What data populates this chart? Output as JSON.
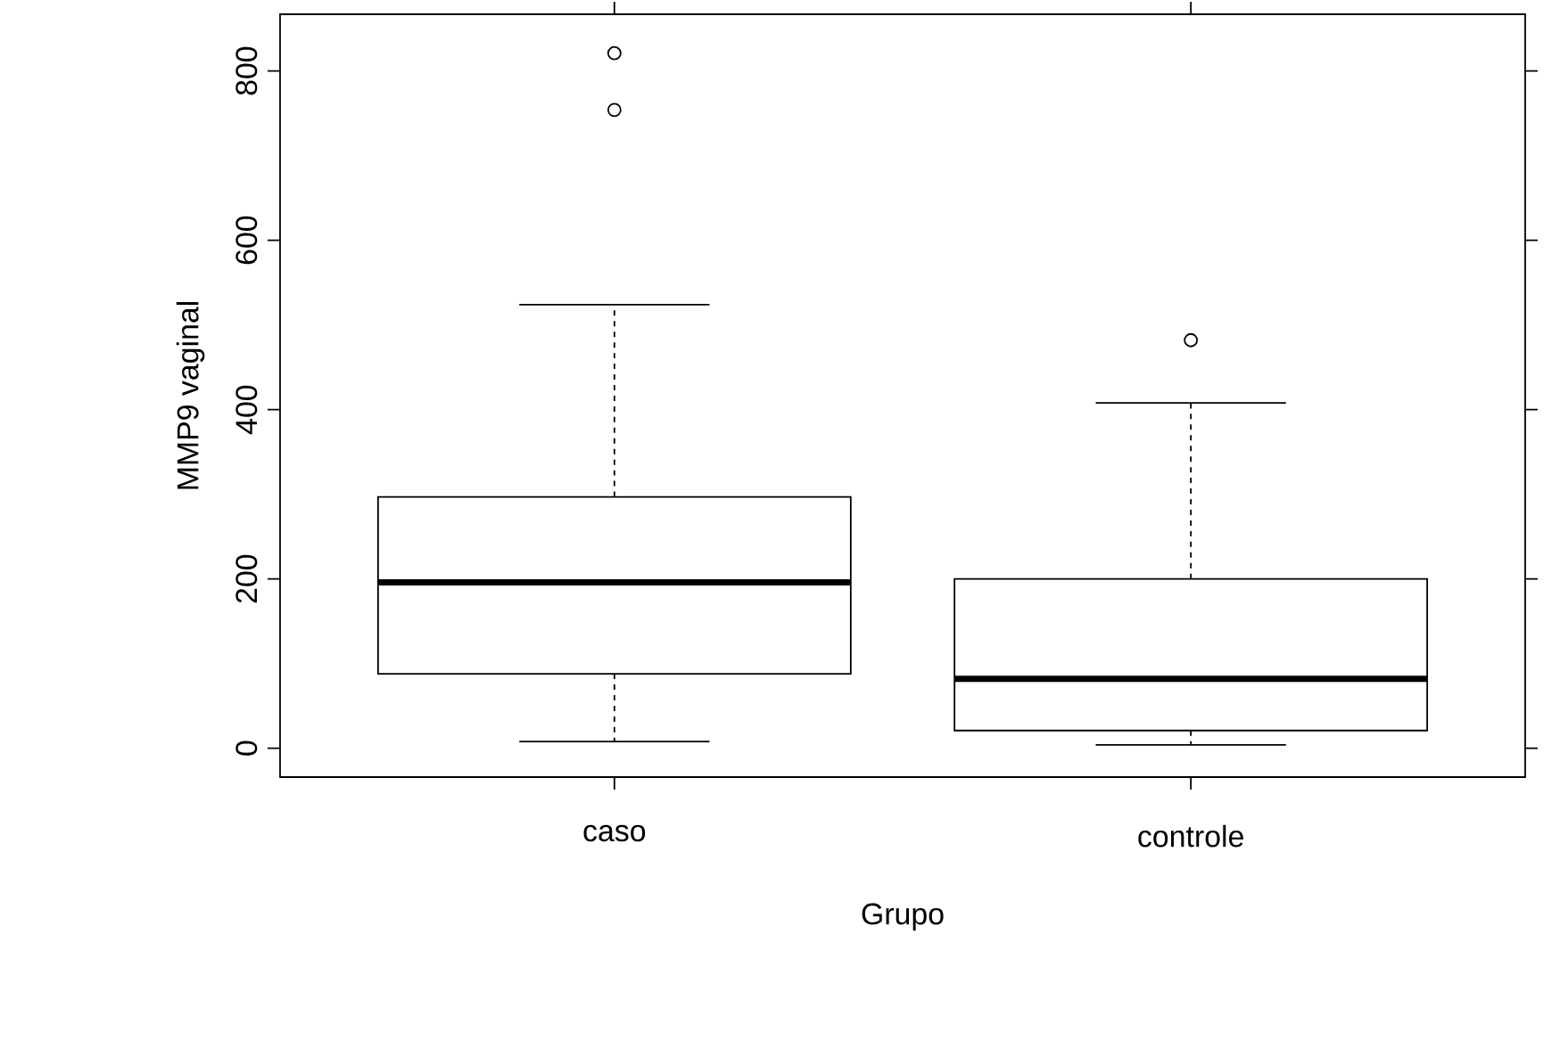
{
  "chart_data": {
    "type": "box",
    "xlabel": "Grupo",
    "ylabel": "MMP9 vaginal",
    "categories": [
      "caso",
      "controle"
    ],
    "boxes": [
      {
        "low": 8,
        "q1": 88,
        "median": 196,
        "q3": 297,
        "high": 524,
        "outliers": [
          754,
          821
        ]
      },
      {
        "low": 4,
        "q1": 21,
        "median": 82,
        "q3": 200,
        "high": 408,
        "outliers": [
          482
        ]
      }
    ],
    "ylim": [
      -34,
      867
    ],
    "yticks": [
      0,
      200,
      400,
      600,
      800
    ],
    "color": "#000000"
  }
}
